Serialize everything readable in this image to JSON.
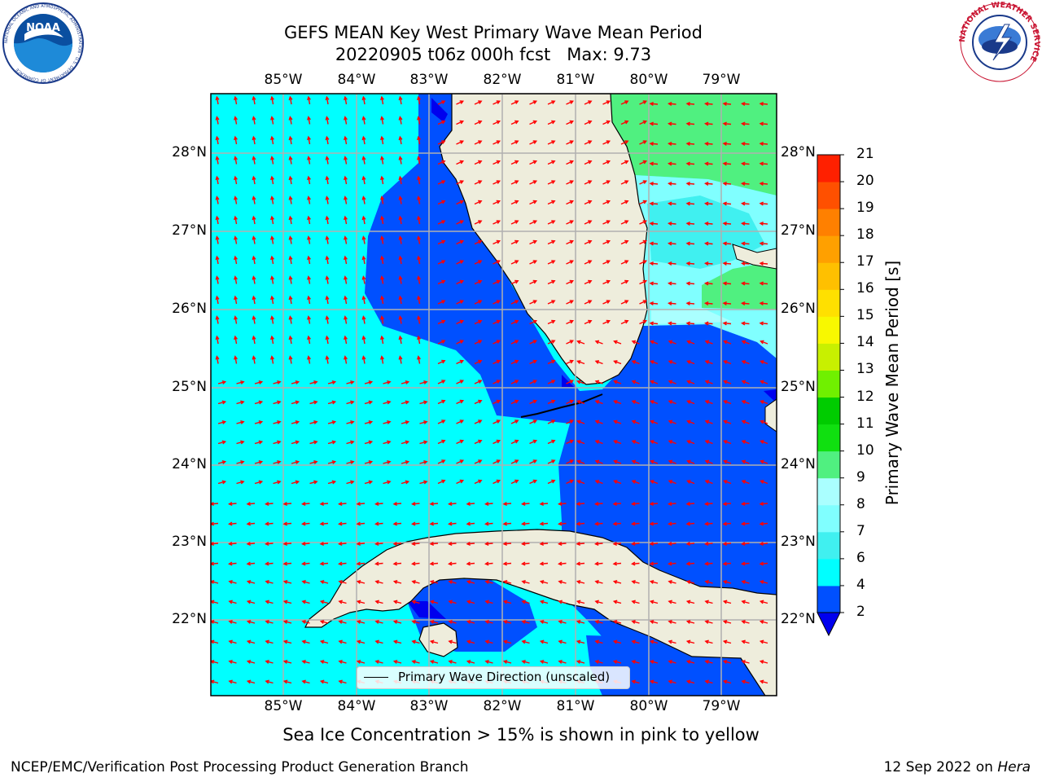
{
  "title": {
    "line1": "GEFS MEAN Key West Primary Wave Mean Period",
    "line2": "20220905 t06z 000h fcst   Max: 9.73"
  },
  "logos": {
    "left": {
      "name": "NOAA",
      "ring_text": "NATIONAL OCEANIC AND ATMOSPHERIC ADMINISTRATION · U.S. DEPARTMENT OF COMMERCE"
    },
    "right": {
      "ring_text": "NATIONAL WEATHER SERVICE"
    }
  },
  "map": {
    "lon_labels": [
      "85°W",
      "84°W",
      "83°W",
      "82°W",
      "81°W",
      "80°W",
      "79°W"
    ],
    "lat_labels": [
      "28°N",
      "27°N",
      "26°N",
      "25°N",
      "24°N",
      "23°N",
      "22°N"
    ],
    "legend": "Primary Wave Direction (unscaled)"
  },
  "colorbar": {
    "label": "Primary Wave Mean Period [s]",
    "ticks": [
      "2",
      "4",
      "6",
      "7",
      "8",
      "9",
      "10",
      "11",
      "12",
      "13",
      "14",
      "15",
      "16",
      "17",
      "18",
      "19",
      "20",
      "21"
    ],
    "colors": [
      "#0050ff",
      "#00ffff",
      "#40f0f0",
      "#80ffff",
      "#aaffff",
      "#50f080",
      "#10e010",
      "#00cc00",
      "#70f000",
      "#c8f000",
      "#f8f800",
      "#ffe000",
      "#ffc000",
      "#ffa000",
      "#ff8000",
      "#ff5000",
      "#ff2000",
      "#ff0000"
    ]
  },
  "sea_ice_note": "Sea Ice Concentration > 15% is shown in pink to yellow",
  "footer": {
    "left": "NCEP/EMC/Verification Post Processing Product Generation Branch",
    "right_prefix": "12 Sep 2022 on ",
    "right_host": "Hera"
  },
  "palette": {
    "land": "#eeeddc",
    "coast": "#000000",
    "arrow": "#ff0000",
    "grid": "#b0b0b0"
  }
}
